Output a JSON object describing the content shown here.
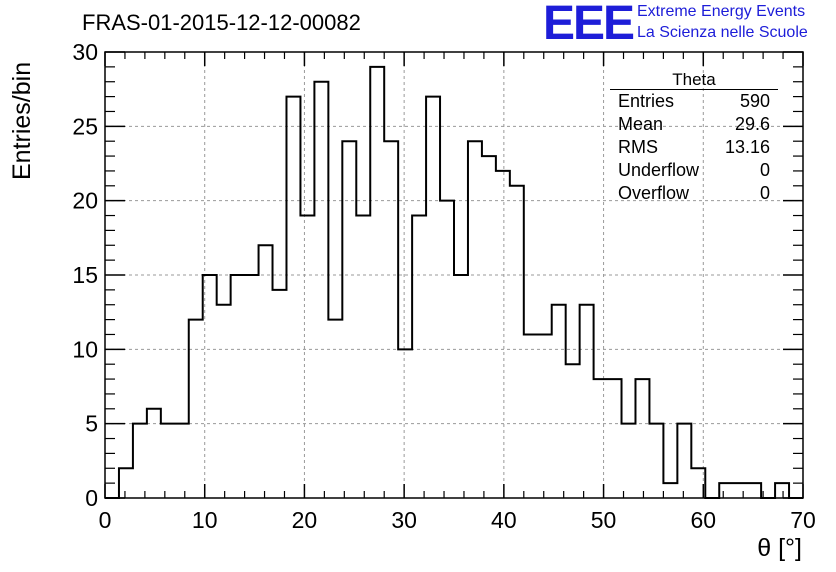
{
  "chart_data": {
    "type": "bar",
    "subtype": "step-histogram",
    "title": "FRAS-01-2015-12-12-00082",
    "xlabel": "θ [°]",
    "ylabel": "Entries/bin",
    "xlim": [
      0,
      70
    ],
    "ylim": [
      0,
      30
    ],
    "x_ticks": [
      "0",
      "10",
      "20",
      "30",
      "40",
      "50",
      "60",
      "70"
    ],
    "y_ticks": [
      "0",
      "5",
      "10",
      "15",
      "20",
      "25",
      "30"
    ],
    "grid": true,
    "bin_edges_start": 0,
    "bin_width": 1.4,
    "values": [
      0,
      2,
      5,
      6,
      5,
      5,
      12,
      15,
      13,
      15,
      15,
      17,
      14,
      27,
      19,
      28,
      12,
      24,
      19,
      29,
      24,
      10,
      19,
      27,
      20,
      15,
      24,
      23,
      22,
      21,
      11,
      11,
      13,
      9,
      13,
      8,
      8,
      5,
      8,
      5,
      1,
      5,
      2,
      0,
      1,
      1,
      1,
      0,
      1,
      0
    ],
    "series": [
      {
        "name": "Theta",
        "values": "see values"
      }
    ]
  },
  "stats_box": {
    "title": "Theta",
    "rows": [
      {
        "label": "Entries",
        "value": "590"
      },
      {
        "label": "Mean",
        "value": "29.6"
      },
      {
        "label": "RMS",
        "value": "13.16"
      },
      {
        "label": "Underflow",
        "value": "0"
      },
      {
        "label": "Overflow",
        "value": "0"
      }
    ]
  },
  "logo": {
    "mark": "EEE",
    "line1": "Extreme Energy Events",
    "line2": "La Scienza nelle Scuole",
    "color": "#1d1dd8"
  }
}
